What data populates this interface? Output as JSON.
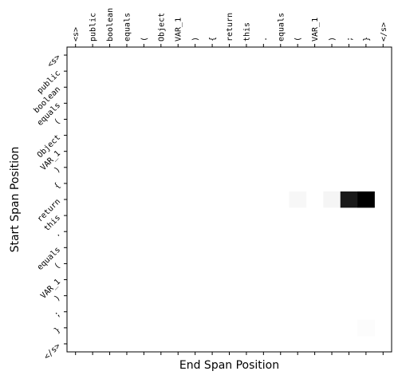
{
  "chart_data": {
    "type": "heatmap",
    "title": "",
    "xlabel": "End Span Position",
    "ylabel": "Start Span Position",
    "x_tokens": [
      "<s>",
      "public",
      "boolean",
      "equals",
      "(",
      "Object",
      "VAR_1",
      ")",
      "{",
      "return",
      "this",
      ".",
      "equals",
      "(",
      "VAR_1",
      ")",
      ";",
      "}",
      "</s>"
    ],
    "y_tokens": [
      "<s>",
      "public",
      "boolean",
      "equals",
      "(",
      "Object",
      "VAR_1",
      ")",
      "{",
      "return",
      "this",
      ".",
      "equals",
      "(",
      "VAR_1",
      ")",
      ";",
      "}",
      "</s>"
    ],
    "colormap": "grayscale (white = low, black = high)",
    "cells": [
      {
        "row": 9,
        "col": 13,
        "value": 0.03
      },
      {
        "row": 9,
        "col": 15,
        "value": 0.04
      },
      {
        "row": 9,
        "col": 16,
        "value": 0.9
      },
      {
        "row": 9,
        "col": 17,
        "value": 1.0
      },
      {
        "row": 17,
        "col": 17,
        "value": 0.01
      }
    ]
  }
}
